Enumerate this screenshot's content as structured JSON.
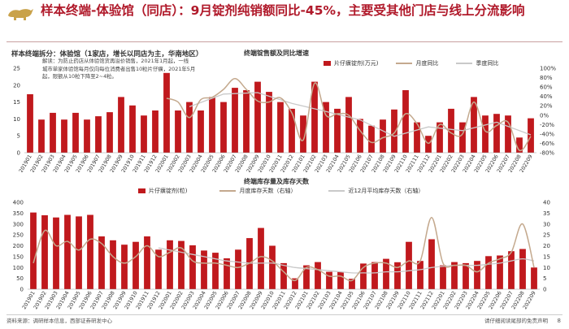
{
  "header": {
    "title": "样本终端-体验馆（同店）：9月锭剂纯销额同比-45%，主要受其他门店与线上分流影响"
  },
  "footer": {
    "source": "资料来源：调研样本信息，西部证券研发中心",
    "disclaimer": "请仔细阅读尾部的免责声明",
    "page": "8"
  },
  "colors": {
    "bar": "#c0191d",
    "monthly_line": "#c4a98e",
    "quarterly_line": "#c9c9c9",
    "accent": "#b0192a"
  },
  "chart_data": [
    {
      "type": "bar",
      "section_label": "样本终端拆分：体验馆（1家店，增长以同店为主，华南地区）",
      "title": "终端锭售额及同比增速",
      "note": [
        "解读：为防止药店从体验馆货再溢价销售，2021年1月起，一线",
        "城市单家体验馆每月仅向每位消费者出售10粒片仔癀，2021年5月",
        "起，限额从10粒下降至2~4粒。"
      ],
      "legend": [
        "片仔癀锭剂(万元)",
        "月度同比",
        "季度同比"
      ],
      "categories": [
        "201901",
        "201902",
        "201903",
        "201904",
        "201905",
        "201906",
        "201907",
        "201908",
        "201909",
        "201910",
        "201911",
        "201912",
        "202001",
        "202002",
        "202003",
        "202004",
        "202005",
        "202006",
        "202007",
        "202008",
        "202009",
        "202010",
        "202011",
        "202012",
        "202101",
        "202102",
        "202103",
        "202104",
        "202105",
        "202106",
        "202107",
        "202108",
        "202109",
        "202110",
        "202111",
        "202112",
        "202201",
        "202202",
        "202203",
        "202204",
        "202205",
        "202206",
        "202207",
        "202208",
        "202209"
      ],
      "xtick_labels": [
        "201901",
        "201902",
        "201903",
        "201904",
        "201905",
        "201906",
        "201907",
        "201908",
        "201909",
        "201910",
        "201911",
        "201912",
        "202001",
        "202002",
        "202003",
        "202004",
        "202005",
        "202006",
        "202007",
        "202008",
        "202009",
        "202010",
        "202011",
        "202012",
        "202101",
        "202102",
        "202103",
        "202104",
        "202105",
        "202106",
        "202107",
        "202108",
        "202109",
        "202110",
        "202111",
        "202112",
        "202201",
        "202202",
        "202203",
        "202204",
        "202205",
        "202206",
        "202207",
        "202208",
        "202209"
      ],
      "values": [
        17.3,
        9.8,
        11.8,
        9.8,
        11.8,
        9.8,
        10.8,
        12.0,
        16.5,
        14.0,
        11.0,
        12.5,
        23.6,
        12.5,
        15.0,
        12.5,
        16.5,
        15.0,
        19.2,
        18.5,
        21.0,
        18.0,
        15.0,
        13.0,
        11.0,
        21.0,
        15.0,
        13.0,
        16.5,
        10.0,
        8.0,
        9.8,
        12.8,
        18.5,
        9.0,
        5.0,
        9.0,
        13.0,
        9.0,
        16.5,
        11.0,
        11.5,
        11.0,
        4.5,
        10.2
      ],
      "yoy_monthly": [
        null,
        null,
        null,
        null,
        null,
        null,
        null,
        null,
        null,
        null,
        null,
        null,
        36,
        28,
        -5,
        33,
        38,
        55,
        78,
        55,
        30,
        28,
        37,
        5,
        -53,
        68,
        0,
        3,
        0,
        -33,
        -58,
        -48,
        -38,
        3,
        -18,
        -60,
        -20,
        -38,
        -40,
        28,
        -34,
        -22,
        -15,
        -75,
        -45
      ],
      "yoy_quarterly": [
        null,
        null,
        null,
        null,
        null,
        null,
        null,
        null,
        null,
        null,
        null,
        null,
        null,
        null,
        18,
        null,
        null,
        45,
        null,
        null,
        48,
        null,
        null,
        25,
        null,
        null,
        8,
        null,
        null,
        -10,
        null,
        null,
        -45,
        null,
        null,
        -25,
        null,
        null,
        -33,
        null,
        null,
        -15,
        null,
        null,
        -42
      ],
      "ylim_left": [
        0,
        25
      ],
      "yticks_left": [
        0,
        5,
        10,
        15,
        20,
        25
      ],
      "ylim_right": [
        -80,
        100
      ],
      "yticks_right": [
        "-80%",
        "-60%",
        "-40%",
        "-20%",
        "0%",
        "20%",
        "40%",
        "60%",
        "80%",
        "100%"
      ]
    },
    {
      "type": "bar",
      "title": "终端库存量及库存天数",
      "legend": [
        "片仔癀锭剂(粒)",
        "月度库存天数（右轴）",
        "近12月平均库存天数（右轴）"
      ],
      "categories": [
        "201901",
        "201902",
        "201903",
        "201904",
        "201905",
        "201906",
        "201907",
        "201908",
        "201909",
        "201910",
        "201911",
        "201912",
        "202001",
        "202002",
        "202003",
        "202004",
        "202005",
        "202006",
        "202007",
        "202008",
        "202009",
        "202010",
        "202011",
        "202012",
        "202101",
        "202102",
        "202103",
        "202104",
        "202105",
        "202106",
        "202107",
        "202108",
        "202109",
        "202110",
        "202111",
        "202112",
        "202201",
        "202202",
        "202203",
        "202204",
        "202205",
        "202206",
        "202207",
        "202208",
        "202209"
      ],
      "xtick_labels": [
        "201901",
        "201902",
        "201903",
        "201904",
        "201905",
        "201906",
        "201907",
        "201908",
        "201909",
        "201910",
        "201911",
        "201912",
        "202001",
        "202002",
        "202003",
        "202004",
        "202005",
        "202006",
        "202007",
        "202008",
        "202009",
        "202010",
        "202011",
        "202012",
        "202101",
        "202102",
        "202103",
        "202104",
        "202105",
        "202106",
        "202107",
        "202108",
        "202109",
        "202110",
        "202111",
        "202112",
        "202201",
        "202202",
        "202203",
        "202204",
        "202205",
        "202206",
        "202207",
        "202208",
        "202209"
      ],
      "values": [
        353,
        340,
        330,
        342,
        335,
        342,
        243,
        225,
        205,
        218,
        243,
        182,
        225,
        222,
        202,
        178,
        168,
        142,
        182,
        235,
        282,
        200,
        120,
        50,
        110,
        125,
        80,
        80,
        48,
        118,
        125,
        140,
        124,
        218,
        130,
        230,
        110,
        125,
        120,
        130,
        152,
        155,
        175,
        185,
        100
      ],
      "inv_days_monthly": [
        12,
        27,
        20,
        22,
        18,
        23,
        21,
        15,
        12,
        15,
        20,
        15,
        17,
        19,
        13,
        12,
        12,
        11,
        10,
        12,
        15,
        13,
        8,
        4,
        10,
        9,
        6,
        6,
        4,
        10,
        12,
        12,
        10,
        13,
        13,
        33,
        12,
        11,
        11,
        8,
        12,
        14,
        17,
        30,
        10
      ],
      "inv_days_avg12": [
        null,
        null,
        null,
        null,
        null,
        null,
        null,
        null,
        null,
        null,
        null,
        19,
        18,
        17,
        16,
        15,
        14,
        13,
        12.5,
        12,
        12,
        12,
        11,
        10,
        9.5,
        9,
        8.5,
        8,
        7.5,
        7.5,
        7.5,
        8,
        8,
        8.5,
        9,
        10,
        10.5,
        11,
        11,
        11,
        11.5,
        12,
        13,
        14,
        13
      ],
      "ylim_left": [
        0,
        400
      ],
      "yticks_left": [
        0,
        50,
        100,
        150,
        200,
        250,
        300,
        350,
        400
      ],
      "ylim_right": [
        0,
        40
      ],
      "yticks_right": [
        0,
        5,
        10,
        15,
        20,
        25,
        30,
        35,
        40
      ]
    }
  ]
}
